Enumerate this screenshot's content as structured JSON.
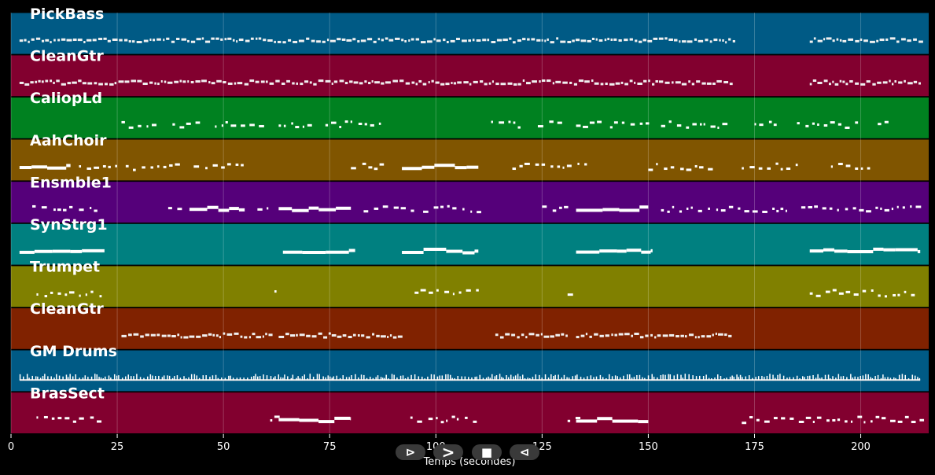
{
  "chart_data": {
    "type": "piano-roll",
    "xlabel": "Temps (secondes)",
    "xlim": [
      0,
      216
    ],
    "xticks": [
      0,
      25,
      50,
      75,
      100,
      125,
      150,
      175,
      200
    ],
    "grid": true,
    "tracks": [
      {
        "name": "PickBass",
        "color": "#005a85",
        "notes": [
          [
            2,
            170,
            "dense"
          ],
          [
            188,
            214,
            "dense"
          ]
        ]
      },
      {
        "name": "CleanGtr",
        "color": "#82002f",
        "notes": [
          [
            2,
            170,
            "dense"
          ],
          [
            188,
            214,
            "dense"
          ]
        ]
      },
      {
        "name": "CaliopLd",
        "color": "#008120",
        "notes": [
          [
            26,
            35,
            "sparse"
          ],
          [
            38,
            45,
            "sparse"
          ],
          [
            48,
            60,
            "sparse"
          ],
          [
            63,
            70,
            "sparse"
          ],
          [
            74,
            88,
            "sparse"
          ],
          [
            113,
            120,
            "sparse"
          ],
          [
            124,
            130,
            "sparse"
          ],
          [
            133,
            138,
            "sparse"
          ],
          [
            141,
            150,
            "sparse"
          ],
          [
            153,
            170,
            "sparse"
          ],
          [
            175,
            180,
            "sparse"
          ],
          [
            185,
            200,
            "sparse"
          ],
          [
            204,
            207,
            "sparse"
          ]
        ]
      },
      {
        "name": "AahChoir",
        "color": "#805500",
        "notes": [
          [
            2,
            14,
            "long"
          ],
          [
            16,
            25,
            "sparse"
          ],
          [
            27,
            40,
            "sparse"
          ],
          [
            43,
            55,
            "sparse"
          ],
          [
            80,
            88,
            "sparse"
          ],
          [
            92,
            110,
            "long"
          ],
          [
            118,
            125,
            "sparse"
          ],
          [
            127,
            135,
            "sparse"
          ],
          [
            150,
            165,
            "sparse"
          ],
          [
            172,
            185,
            "sparse"
          ],
          [
            193,
            202,
            "sparse"
          ]
        ]
      },
      {
        "name": "Ensmble1",
        "color": "#55007a",
        "notes": [
          [
            5,
            8,
            "sparse"
          ],
          [
            10,
            14,
            "sparse"
          ],
          [
            16,
            21,
            "sparse"
          ],
          [
            37,
            40,
            "sparse"
          ],
          [
            42,
            55,
            "long"
          ],
          [
            58,
            62,
            "sparse"
          ],
          [
            63,
            80,
            "long"
          ],
          [
            83,
            95,
            "sparse"
          ],
          [
            97,
            110,
            "sparse"
          ],
          [
            125,
            132,
            "sparse"
          ],
          [
            133,
            150,
            "long"
          ],
          [
            153,
            165,
            "sparse"
          ],
          [
            166,
            183,
            "sparse"
          ],
          [
            186,
            214,
            "sparse"
          ]
        ]
      },
      {
        "name": "SynStrg1",
        "color": "#008080",
        "notes": [
          [
            2,
            22,
            "long"
          ],
          [
            64,
            81,
            "long"
          ],
          [
            92,
            110,
            "long"
          ],
          [
            133,
            151,
            "long"
          ],
          [
            188,
            214,
            "long"
          ]
        ]
      },
      {
        "name": "Trumpet",
        "color": "#808000",
        "notes": [
          [
            6,
            10,
            "sparse"
          ],
          [
            11,
            15,
            "sparse"
          ],
          [
            16,
            21,
            "sparse"
          ],
          [
            62,
            63,
            "sparse"
          ],
          [
            95,
            103,
            "sparse"
          ],
          [
            104,
            110,
            "sparse"
          ],
          [
            131,
            133,
            "sparse"
          ],
          [
            188,
            214,
            "sparse"
          ]
        ]
      },
      {
        "name": "CleanGtr",
        "color": "#802200",
        "notes": [
          [
            26,
            61,
            "dense"
          ],
          [
            63,
            92,
            "dense"
          ],
          [
            114,
            131,
            "dense"
          ],
          [
            133,
            170,
            "dense"
          ]
        ]
      },
      {
        "name": "GM Drums",
        "color": "#005a85",
        "notes": [
          [
            2,
            214,
            "drums"
          ]
        ]
      },
      {
        "name": "BrasSect",
        "color": "#82002f",
        "notes": [
          [
            6,
            10,
            "sparse"
          ],
          [
            11,
            15,
            "sparse"
          ],
          [
            16,
            21,
            "sparse"
          ],
          [
            61,
            63,
            "sparse"
          ],
          [
            63,
            80,
            "long"
          ],
          [
            94,
            99,
            "sparse"
          ],
          [
            100,
            109,
            "sparse"
          ],
          [
            131,
            133,
            "sparse"
          ],
          [
            133,
            150,
            "long"
          ],
          [
            172,
            214,
            "sparse"
          ]
        ]
      }
    ]
  },
  "transport": {
    "play_fwd": "⊳",
    "fast_fwd": ">",
    "stop": "■",
    "rewind": "⊲"
  }
}
